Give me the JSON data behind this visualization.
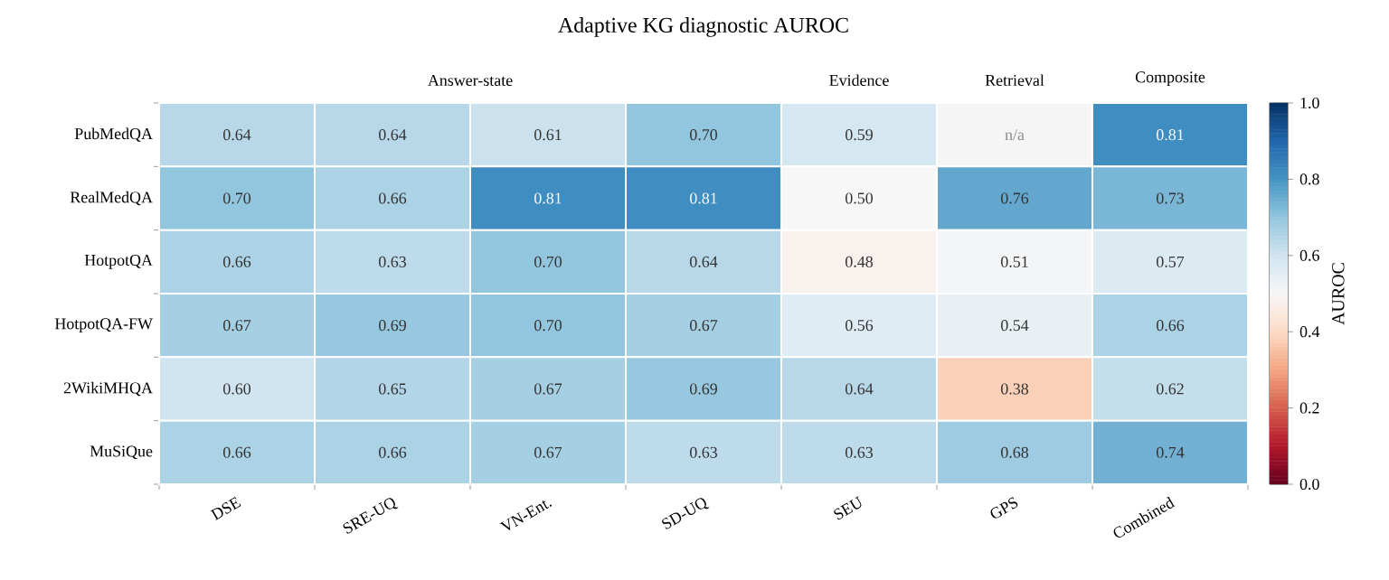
{
  "chart_data": {
    "type": "heatmap",
    "title": "Adaptive KG diagnostic AUROC",
    "categories": [
      "DSE",
      "SRE-UQ",
      "VN-Ent.",
      "SD-UQ",
      "SEU",
      "GPS",
      "Combined"
    ],
    "y_categories": [
      "PubMedQA",
      "RealMedQA",
      "HotpotQA",
      "HotpotQA-FW",
      "2WikiMHQA",
      "MuSiQue"
    ],
    "cells": [
      [
        0.64,
        0.64,
        0.61,
        0.7,
        0.59,
        null,
        0.81
      ],
      [
        0.7,
        0.66,
        0.81,
        0.81,
        0.5,
        0.76,
        0.73
      ],
      [
        0.66,
        0.63,
        0.7,
        0.64,
        0.48,
        0.51,
        0.57
      ],
      [
        0.67,
        0.69,
        0.7,
        0.67,
        0.56,
        0.54,
        0.66
      ],
      [
        0.6,
        0.65,
        0.67,
        0.69,
        0.64,
        0.38,
        0.62
      ],
      [
        0.66,
        0.66,
        0.67,
        0.63,
        0.63,
        0.68,
        0.74
      ]
    ],
    "cell_labels": [
      [
        "0.64",
        "0.64",
        "0.61",
        "0.70",
        "0.59",
        "n/a",
        "0.81"
      ],
      [
        "0.70",
        "0.66",
        "0.81",
        "0.81",
        "0.50",
        "0.76",
        "0.73"
      ],
      [
        "0.66",
        "0.63",
        "0.70",
        "0.64",
        "0.48",
        "0.51",
        "0.57"
      ],
      [
        "0.67",
        "0.69",
        "0.70",
        "0.67",
        "0.56",
        "0.54",
        "0.66"
      ],
      [
        "0.60",
        "0.65",
        "0.67",
        "0.69",
        "0.64",
        "0.38",
        "0.62"
      ],
      [
        "0.66",
        "0.66",
        "0.67",
        "0.63",
        "0.63",
        "0.68",
        "0.74"
      ]
    ],
    "data_labels": true,
    "clim": [
      0.0,
      1.0
    ],
    "cticks": [
      {
        "value": 0,
        "label": "0.0"
      },
      0.2,
      0.4,
      0.6,
      0.8,
      {
        "value": 1,
        "label": "1.0"
      }
    ],
    "clabel": "AUROC",
    "annotations": [
      "Answer-state",
      "Evidence",
      "Retrieval",
      "Composite"
    ]
  }
}
